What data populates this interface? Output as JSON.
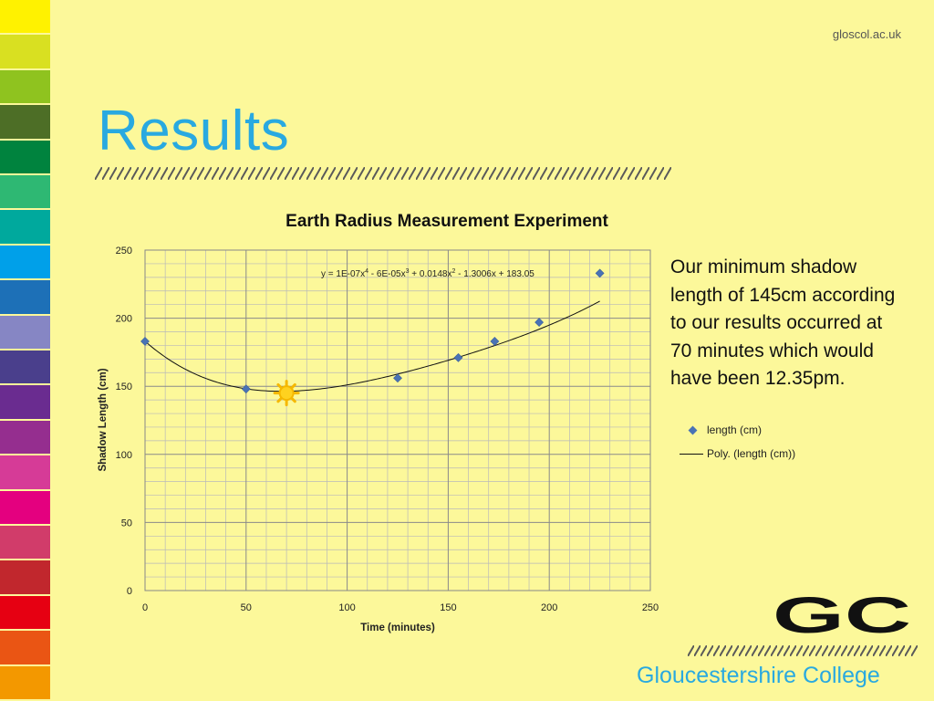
{
  "site_url": "gloscol.ac.uk",
  "slide_title": "Results",
  "palette_colors": [
    "#fff200",
    "#d9e021",
    "#8fc31f",
    "#4d6e26",
    "#00833e",
    "#2eb873",
    "#00a99d",
    "#00a0e9",
    "#1d70b7",
    "#8686c4",
    "#4a3f8c",
    "#6a2c90",
    "#952e8f",
    "#d63b97",
    "#e4007f",
    "#d13c6a",
    "#c1272d",
    "#e60012",
    "#ea5514",
    "#f39800"
  ],
  "note": "Our minimum shadow length of 145cm according to our results occurred at 70 minutes which would have been 12.35pm.",
  "legend": {
    "points_label": "length (cm)",
    "trend_label": "Poly. (length (cm))"
  },
  "college_name": "Gloucestershire College",
  "logo_text": "GC",
  "chart_data": {
    "type": "scatter",
    "title": "Earth Radius Measurement Experiment",
    "xlabel": "Time (minutes)",
    "ylabel": "Shadow Length (cm)",
    "xlim": [
      0,
      250
    ],
    "ylim": [
      0,
      250
    ],
    "xticks": [
      0,
      50,
      100,
      150,
      200,
      250
    ],
    "yticks": [
      0,
      50,
      100,
      150,
      200,
      250
    ],
    "grid": true,
    "series": [
      {
        "name": "length (cm)",
        "x": [
          0,
          50,
          125,
          155,
          173,
          195,
          225
        ],
        "y": [
          183,
          148,
          156,
          171,
          183,
          197,
          233
        ],
        "color": "#4a73b5"
      }
    ],
    "trendline": {
      "name": "Poly. (length (cm))",
      "equation": {
        "p1": "y = 1E-07x",
        "e1": "4",
        "p2": " - 6E-05x",
        "e2": "3",
        "p3": " + 0.0148x",
        "e3": "2",
        "p4": " - 1.3006x + 183.05"
      },
      "coefficients": [
        1e-07,
        -6e-05,
        0.0148,
        -1.3006,
        183.05
      ]
    },
    "annotation": {
      "label": "sun-marker",
      "x": 70,
      "y": 145,
      "color": "#f5b800"
    }
  }
}
